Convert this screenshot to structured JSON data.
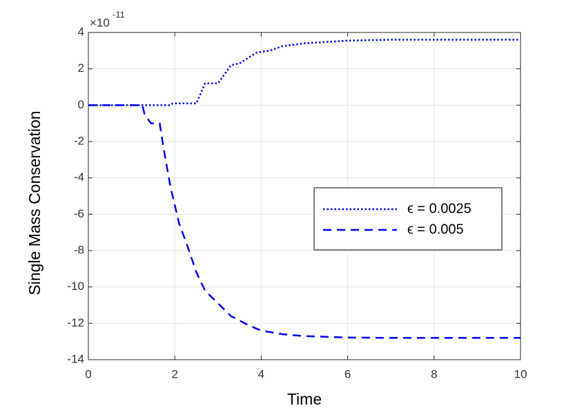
{
  "chart_data": {
    "type": "line",
    "xlabel": "Time",
    "ylabel": "Single Mass Conservation",
    "y_scale_label": {
      "base": "×10",
      "exponent": "-11"
    },
    "xlim": [
      0,
      10
    ],
    "xticks": [
      0,
      2,
      4,
      6,
      8,
      10
    ],
    "ylim": [
      -14,
      4
    ],
    "yticks": [
      -14,
      -12,
      -10,
      -8,
      -6,
      -4,
      -2,
      0,
      2,
      4
    ],
    "grid": true,
    "legend_loc": "center right",
    "series": [
      {
        "name": "ϵ = 0.0025",
        "color": "#0000ff",
        "style": "dotted",
        "x": [
          0,
          1.2,
          1.9,
          1.95,
          2.5,
          2.7,
          3.0,
          3.3,
          3.5,
          3.9,
          4.2,
          4.5,
          5,
          6,
          7,
          8,
          10
        ],
        "values": [
          0,
          0,
          0,
          0.1,
          0.1,
          1.2,
          1.2,
          2.2,
          2.3,
          2.9,
          3.0,
          3.25,
          3.4,
          3.55,
          3.6,
          3.6,
          3.6
        ]
      },
      {
        "name": "ϵ = 0.005",
        "color": "#0000ff",
        "style": "dashed",
        "x": [
          0,
          1.25,
          1.3,
          1.45,
          1.65,
          1.75,
          1.9,
          2.1,
          2.3,
          2.5,
          2.7,
          3.0,
          3.3,
          3.7,
          4.0,
          4.5,
          5,
          6,
          7,
          10
        ],
        "values": [
          0,
          0,
          -0.5,
          -1.0,
          -1.0,
          -2.5,
          -4.5,
          -6.5,
          -7.8,
          -9.2,
          -10.2,
          -10.9,
          -11.6,
          -12.1,
          -12.4,
          -12.6,
          -12.7,
          -12.78,
          -12.8,
          -12.8
        ]
      }
    ]
  }
}
